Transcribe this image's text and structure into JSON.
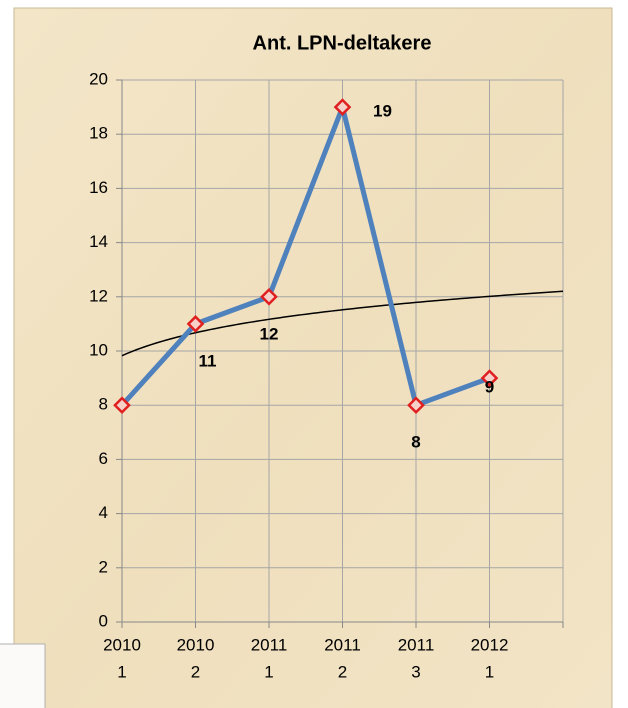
{
  "chart_data": {
    "type": "line",
    "title": "Ant. LPN-deltakere",
    "categories": [
      [
        "2010",
        "1"
      ],
      [
        "2010",
        "2"
      ],
      [
        "2011",
        "1"
      ],
      [
        "2011",
        "2"
      ],
      [
        "2011",
        "3"
      ],
      [
        "2012",
        "1"
      ]
    ],
    "values": [
      8,
      11,
      12,
      19,
      8,
      9
    ],
    "value_labels": [
      null,
      "11",
      "12",
      "19",
      "8",
      "9"
    ],
    "color": "#4f81bd",
    "marker_color": "#e02020",
    "trendline": "logarithmic",
    "trendline_color": "#000000",
    "ylim": [
      0,
      20
    ],
    "yticks": [
      0,
      2,
      4,
      6,
      8,
      10,
      12,
      14,
      16,
      18,
      20
    ],
    "grid": true
  }
}
